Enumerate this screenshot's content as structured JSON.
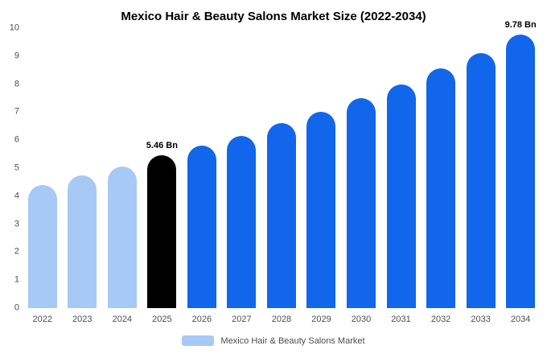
{
  "chart_data": {
    "type": "bar",
    "title": "Mexico Hair & Beauty Salons Market Size (2022-2034)",
    "categories": [
      "2022",
      "2023",
      "2024",
      "2025",
      "2026",
      "2027",
      "2028",
      "2029",
      "2030",
      "2031",
      "2032",
      "2033",
      "2034"
    ],
    "values": [
      4.4,
      4.75,
      5.05,
      5.46,
      5.8,
      6.15,
      6.6,
      7.0,
      7.5,
      8.0,
      8.55,
      9.1,
      9.78
    ],
    "bar_colors": [
      "#a6c9f5",
      "#a6c9f5",
      "#a6c9f5",
      "#000000",
      "#1266eb",
      "#1266eb",
      "#1266eb",
      "#1266eb",
      "#1266eb",
      "#1266eb",
      "#1266eb",
      "#1266eb",
      "#1266eb"
    ],
    "annotations": [
      {
        "category": "2025",
        "text": "5.46 Bn"
      },
      {
        "category": "2034",
        "text": "9.78 Bn"
      }
    ],
    "xlabel": "",
    "ylabel": "",
    "ylim": [
      0,
      10
    ],
    "yticks": [
      0,
      1,
      2,
      3,
      4,
      5,
      6,
      7,
      8,
      9,
      10
    ],
    "grid": false,
    "legend_position": "bottom"
  },
  "legend": {
    "label": "Mexico Hair & Beauty Salons Market",
    "swatch_color": "#a6c9f5"
  }
}
